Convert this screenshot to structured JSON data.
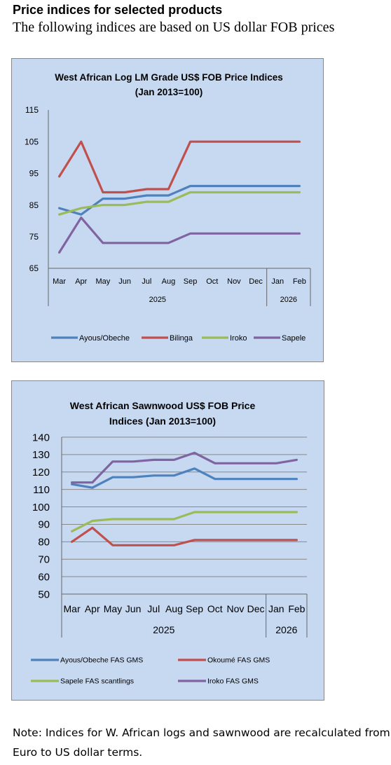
{
  "page": {
    "heading": "Price indices for selected products",
    "subheading": "The following indices are based on US dollar FOB prices",
    "note": "Note: Indices for W. African logs and sawnwood are recalculated from Euro to US dollar terms."
  },
  "chart_data": [
    {
      "type": "line",
      "title": "West African Log LM Grade US$ FOB Price Indices (Jan 2013=100)",
      "title_lines": [
        "West African Log LM Grade US$ FOB Price Indices",
        "(Jan 2013=100)"
      ],
      "categories": [
        "Mar",
        "Apr",
        "May",
        "Jun",
        "Jul",
        "Aug",
        "Sep",
        "Oct",
        "Nov",
        "Dec",
        "Jan",
        "Feb"
      ],
      "year_groups": [
        {
          "label": "2025",
          "start": 0,
          "end": 9
        },
        {
          "label": "2026",
          "start": 10,
          "end": 11
        }
      ],
      "ylim": [
        65,
        115
      ],
      "yticks": [
        65,
        75,
        85,
        95,
        105,
        115
      ],
      "grid": false,
      "legend_position": "bottom",
      "series": [
        {
          "name": "Ayous/Obeche",
          "color": "#4f81bd",
          "values": [
            84,
            82,
            87,
            87,
            88,
            88,
            91,
            91,
            91,
            91,
            91,
            91
          ]
        },
        {
          "name": "Bilinga",
          "color": "#c0504d",
          "values": [
            94,
            105,
            89,
            89,
            90,
            90,
            105,
            105,
            105,
            105,
            105,
            105
          ]
        },
        {
          "name": "Iroko",
          "color": "#9bbb59",
          "values": [
            82,
            84,
            85,
            85,
            86,
            86,
            89,
            89,
            89,
            89,
            89,
            89
          ]
        },
        {
          "name": "Sapele",
          "color": "#8064a2",
          "values": [
            70,
            81,
            73,
            73,
            73,
            73,
            76,
            76,
            76,
            76,
            76,
            76
          ]
        }
      ]
    },
    {
      "type": "line",
      "title": "West African Sawnwood US$ FOB Price Indices (Jan 2013=100)",
      "title_lines": [
        "West African Sawnwood US$ FOB Price",
        "Indices (Jan 2013=100)"
      ],
      "categories": [
        "Mar",
        "Apr",
        "May",
        "Jun",
        "Jul",
        "Aug",
        "Sep",
        "Oct",
        "Nov",
        "Dec",
        "Jan",
        "Feb"
      ],
      "year_groups": [
        {
          "label": "2025",
          "start": 0,
          "end": 9
        },
        {
          "label": "2026",
          "start": 10,
          "end": 11
        }
      ],
      "ylim": [
        50,
        140
      ],
      "yticks": [
        50,
        60,
        70,
        80,
        90,
        100,
        110,
        120,
        130,
        140
      ],
      "grid": true,
      "legend_position": "bottom",
      "series": [
        {
          "name": "Ayous/Obeche  FAS GMS",
          "color": "#4f81bd",
          "values": [
            113,
            111,
            117,
            117,
            118,
            118,
            122,
            116,
            116,
            116,
            116,
            116
          ]
        },
        {
          "name": "Okoumé  FAS GMS",
          "color": "#c0504d",
          "values": [
            80,
            88,
            78,
            78,
            78,
            78,
            81,
            81,
            81,
            81,
            81,
            81
          ]
        },
        {
          "name": "Sapele FAS scantlings",
          "color": "#9bbb59",
          "values": [
            86,
            92,
            93,
            93,
            93,
            93,
            97,
            97,
            97,
            97,
            97,
            97
          ]
        },
        {
          "name": "Iroko FAS GMS",
          "color": "#8064a2",
          "values": [
            114,
            114,
            126,
            126,
            127,
            127,
            131,
            125,
            125,
            125,
            125,
            127
          ]
        }
      ]
    }
  ]
}
